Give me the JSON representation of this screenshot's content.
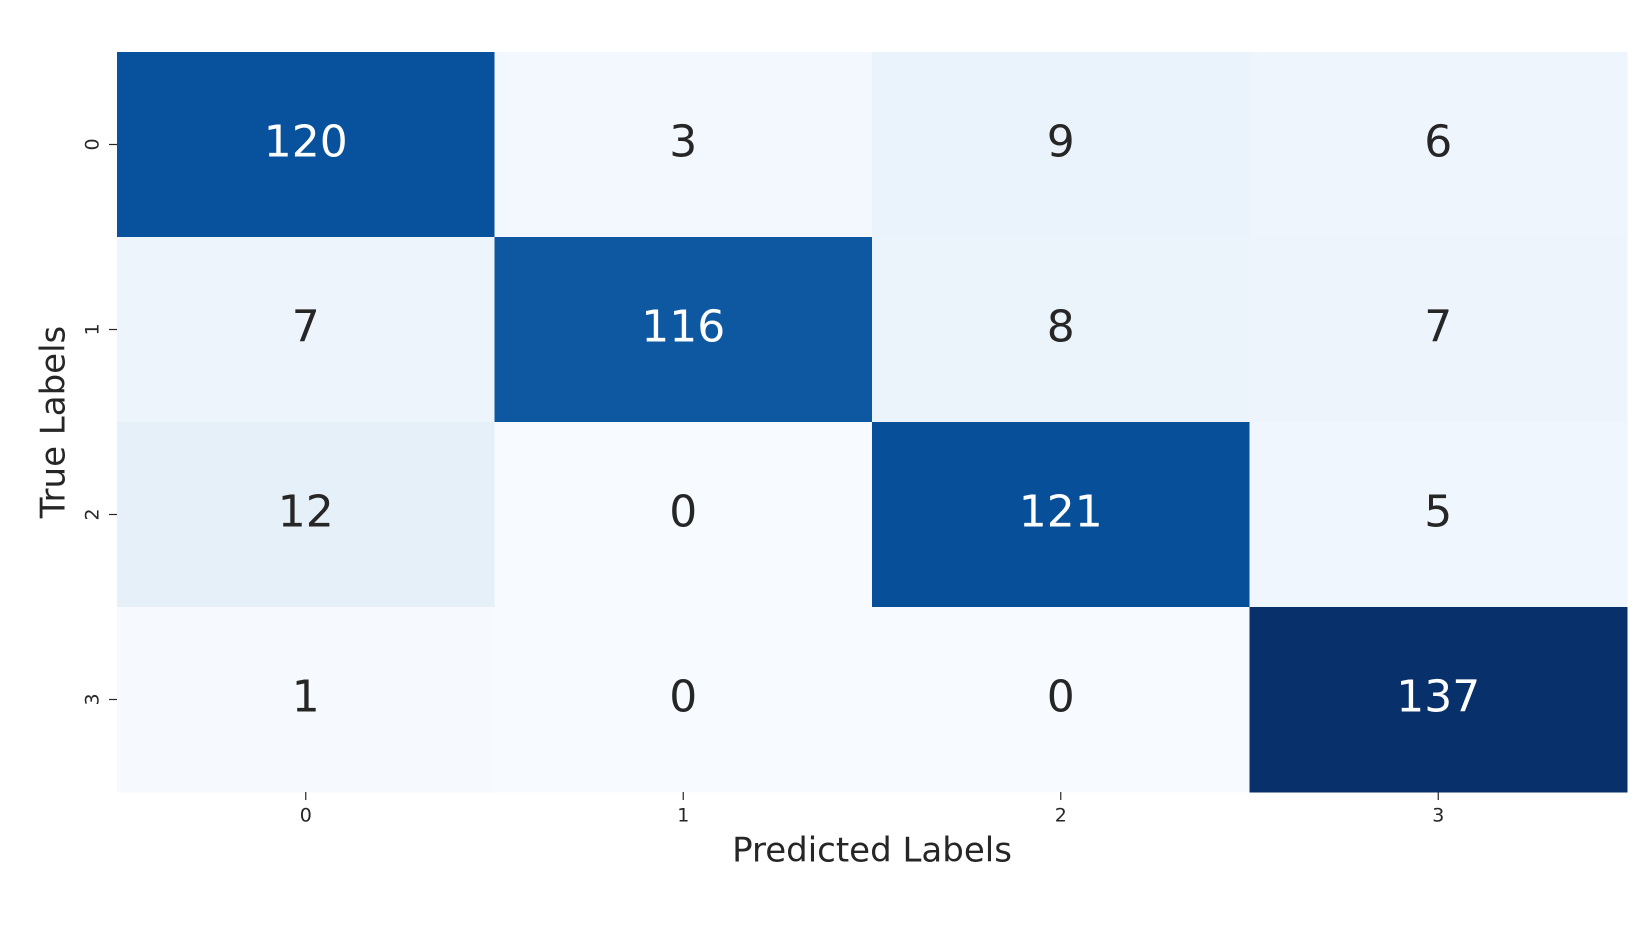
{
  "chart_data": {
    "type": "heatmap",
    "xlabel": "Predicted Labels",
    "ylabel": "True Labels",
    "x_categories": [
      "0",
      "1",
      "2",
      "3"
    ],
    "y_categories": [
      "0",
      "1",
      "2",
      "3"
    ],
    "values": [
      [
        120,
        3,
        9,
        6
      ],
      [
        7,
        116,
        8,
        7
      ],
      [
        12,
        0,
        121,
        5
      ],
      [
        1,
        0,
        0,
        137
      ]
    ],
    "colormap": "Blues"
  }
}
